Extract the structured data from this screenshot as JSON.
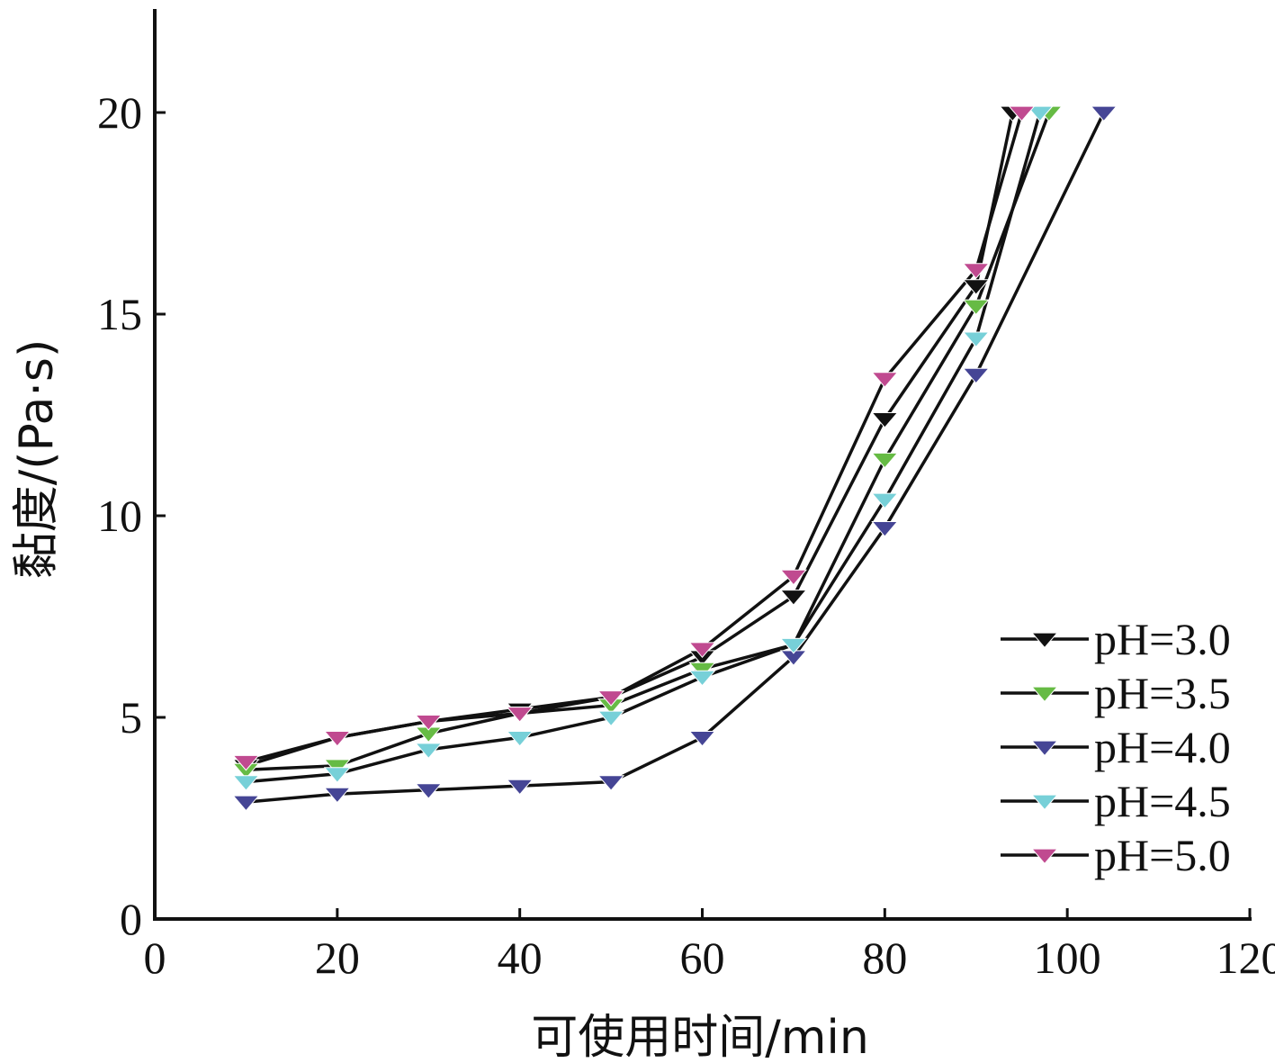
{
  "chart_data": {
    "type": "line",
    "xlabel": "可使用时间/min",
    "ylabel": "黏度/(Pa·s)",
    "xlim": [
      0,
      120
    ],
    "ylim": [
      0,
      20
    ],
    "x_ticks": [
      "0",
      "20",
      "40",
      "60",
      "80",
      "100",
      "120"
    ],
    "y_ticks": [
      "0",
      "5",
      "10",
      "15",
      "20"
    ],
    "grid": false,
    "legend_position": "bottom-right",
    "line_color": "#111111",
    "marker": "down-triangle",
    "series": [
      {
        "name": "pH=3.0",
        "color": "#111111",
        "x": [
          10,
          20,
          30,
          40,
          50,
          60,
          70,
          80,
          90,
          94
        ],
        "y": [
          3.8,
          4.5,
          4.9,
          5.2,
          5.5,
          6.5,
          8.0,
          12.4,
          15.7,
          20
        ]
      },
      {
        "name": "pH=3.5",
        "color": "#66bb44",
        "x": [
          10,
          20,
          30,
          40,
          50,
          60,
          70,
          80,
          90,
          98
        ],
        "y": [
          3.7,
          3.8,
          4.6,
          5.1,
          5.3,
          6.2,
          6.8,
          11.4,
          15.2,
          20
        ]
      },
      {
        "name": "pH=4.0",
        "color": "#454595",
        "x": [
          10,
          20,
          30,
          40,
          50,
          60,
          70,
          80,
          90,
          104
        ],
        "y": [
          2.9,
          3.1,
          3.2,
          3.3,
          3.4,
          4.5,
          6.5,
          9.7,
          13.5,
          20
        ]
      },
      {
        "name": "pH=4.5",
        "color": "#77d0d8",
        "x": [
          10,
          20,
          30,
          40,
          50,
          60,
          70,
          80,
          90,
          97
        ],
        "y": [
          3.4,
          3.6,
          4.2,
          4.5,
          5.0,
          6.0,
          6.8,
          10.4,
          14.4,
          20
        ]
      },
      {
        "name": "pH=5.0",
        "color": "#c04a90",
        "x": [
          10,
          20,
          30,
          40,
          50,
          60,
          70,
          80,
          90,
          95
        ],
        "y": [
          3.9,
          4.5,
          4.9,
          5.1,
          5.5,
          6.7,
          8.5,
          13.4,
          16.1,
          20
        ]
      }
    ]
  }
}
